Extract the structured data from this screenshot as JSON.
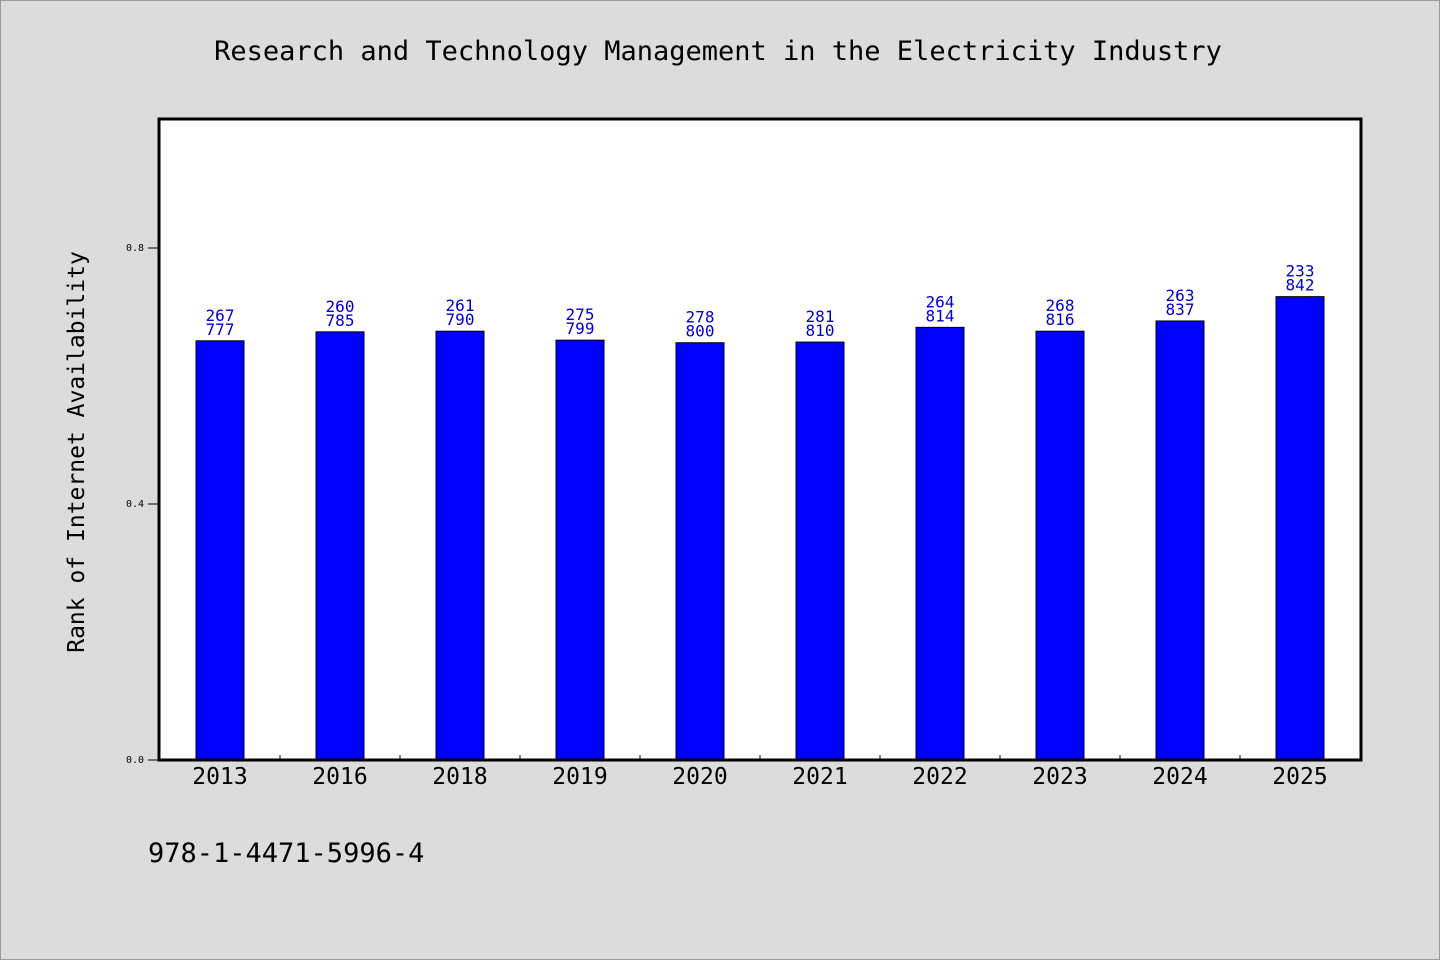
{
  "chart_data": {
    "type": "bar",
    "title": "Research and Technology Management in the Electricity Industry",
    "ylabel": "Rank of Internet Availability",
    "xlabel": "",
    "categories": [
      "2013",
      "2016",
      "2018",
      "2019",
      "2020",
      "2021",
      "2022",
      "2023",
      "2024",
      "2025"
    ],
    "values": [
      0.655,
      0.669,
      0.67,
      0.656,
      0.652,
      0.653,
      0.676,
      0.67,
      0.686,
      0.724
    ],
    "data_labels": [
      [
        "267",
        "777"
      ],
      [
        "260",
        "785"
      ],
      [
        "261",
        "790"
      ],
      [
        "275",
        "799"
      ],
      [
        "278",
        "800"
      ],
      [
        "281",
        "810"
      ],
      [
        "264",
        "814"
      ],
      [
        "268",
        "816"
      ],
      [
        "263",
        "837"
      ],
      [
        "233",
        "842"
      ]
    ],
    "ylim": [
      0,
      1.0
    ],
    "yticks": [
      0.0,
      0.4,
      0.8
    ],
    "ytick_labels": [
      "0.0",
      "0.4",
      "0.8"
    ],
    "grid": false,
    "bar_color": "#0000ff",
    "label_color": "#0000cc"
  },
  "footer": {
    "isbn": "978-1-4471-5996-4"
  }
}
